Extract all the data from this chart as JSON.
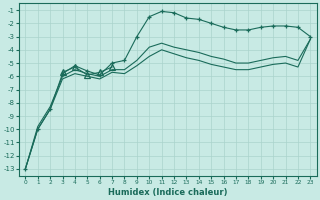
{
  "xlabel": "Humidex (Indice chaleur)",
  "bg_color": "#c8eae4",
  "grid_color": "#aad4cc",
  "line_color": "#1a6b5a",
  "xlim": [
    -0.5,
    23.5
  ],
  "ylim": [
    -13.5,
    -0.5
  ],
  "yticks": [
    -13,
    -12,
    -11,
    -10,
    -9,
    -8,
    -7,
    -6,
    -5,
    -4,
    -3,
    -2,
    -1
  ],
  "xticks": [
    0,
    1,
    2,
    3,
    4,
    5,
    6,
    7,
    8,
    9,
    10,
    11,
    12,
    13,
    14,
    15,
    16,
    17,
    18,
    19,
    20,
    21,
    22,
    23
  ],
  "line1_x": [
    0,
    1,
    2,
    3,
    4,
    5,
    6,
    7,
    8,
    9,
    10,
    11,
    12,
    13,
    14,
    15,
    16,
    17,
    18,
    19,
    20,
    21,
    22,
    23
  ],
  "line1_y": [
    -13,
    -10,
    -8.5,
    -5.8,
    -5.2,
    -5.6,
    -5.9,
    -5.0,
    -4.8,
    -3.0,
    -1.5,
    -1.1,
    -1.2,
    -1.6,
    -1.7,
    -2.0,
    -2.3,
    -2.5,
    -2.5,
    -2.3,
    -2.2,
    -2.2,
    -2.3,
    -3.0
  ],
  "line1_marker": "+",
  "line1_ms": 3.5,
  "line2_x": [
    3,
    4,
    5,
    6,
    7
  ],
  "line2_y": [
    -5.7,
    -5.3,
    -5.9,
    -5.7,
    -5.3
  ],
  "line2_marker": "^",
  "line2_ms": 4,
  "line3_x": [
    0,
    1,
    2,
    3,
    4,
    5,
    6,
    7,
    8,
    9,
    10,
    11,
    12,
    13,
    14,
    15,
    16,
    17,
    18,
    19,
    20,
    21,
    22,
    23
  ],
  "line3_y": [
    -13,
    -9.8,
    -8.3,
    -6.0,
    -5.5,
    -5.8,
    -6.0,
    -5.5,
    -5.5,
    -4.8,
    -3.8,
    -3.5,
    -3.8,
    -4.0,
    -4.2,
    -4.5,
    -4.7,
    -5.0,
    -5.0,
    -4.8,
    -4.6,
    -4.5,
    -4.8,
    -3.2
  ],
  "line4_x": [
    0,
    1,
    2,
    3,
    4,
    5,
    6,
    7,
    8,
    9,
    10,
    11,
    12,
    13,
    14,
    15,
    16,
    17,
    18,
    19,
    20,
    21,
    22,
    23
  ],
  "line4_y": [
    -13,
    -10.0,
    -8.5,
    -6.2,
    -5.8,
    -6.0,
    -6.2,
    -5.7,
    -5.8,
    -5.2,
    -4.5,
    -4.0,
    -4.3,
    -4.6,
    -4.8,
    -5.1,
    -5.3,
    -5.5,
    -5.5,
    -5.3,
    -5.1,
    -5.0,
    -5.3,
    -3.2
  ]
}
